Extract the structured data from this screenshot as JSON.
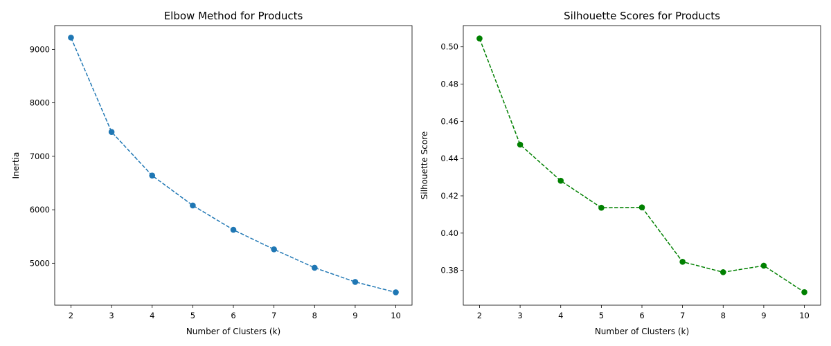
{
  "chart_data": [
    {
      "type": "line",
      "title": "Elbow Method for Products",
      "xlabel": "Number of Clusters (k)",
      "ylabel": "Inertia",
      "x": [
        2,
        3,
        4,
        5,
        6,
        7,
        8,
        9,
        10
      ],
      "xlim": [
        1.6,
        10.4
      ],
      "ylim": [
        4215,
        9445
      ],
      "xticks": [
        2,
        3,
        4,
        5,
        6,
        7,
        8,
        9,
        10
      ],
      "yticks": [
        5000,
        6000,
        7000,
        8000,
        9000
      ],
      "grid": false,
      "series": [
        {
          "values": [
            9220,
            7455,
            6640,
            6080,
            5625,
            5260,
            4915,
            4650,
            4455
          ],
          "color": "#1f77b4",
          "linestyle": "dashed",
          "marker": "o"
        }
      ]
    },
    {
      "type": "line",
      "title": "Silhouette Scores for Products",
      "xlabel": "Number of Clusters (k)",
      "ylabel": "Silhouette Score",
      "x": [
        2,
        3,
        4,
        5,
        6,
        7,
        8,
        9,
        10
      ],
      "xlim": [
        1.6,
        10.4
      ],
      "ylim": [
        0.3613,
        0.5114
      ],
      "xticks": [
        2,
        3,
        4,
        5,
        6,
        7,
        8,
        9,
        10
      ],
      "yticks": [
        0.38,
        0.4,
        0.42,
        0.44,
        0.46,
        0.48,
        0.5
      ],
      "grid": false,
      "series": [
        {
          "values": [
            0.5045,
            0.4475,
            0.4281,
            0.4136,
            0.4138,
            0.3846,
            0.379,
            0.3825,
            0.3683
          ],
          "color": "#008000",
          "linestyle": "dashed",
          "marker": "o"
        }
      ]
    }
  ]
}
